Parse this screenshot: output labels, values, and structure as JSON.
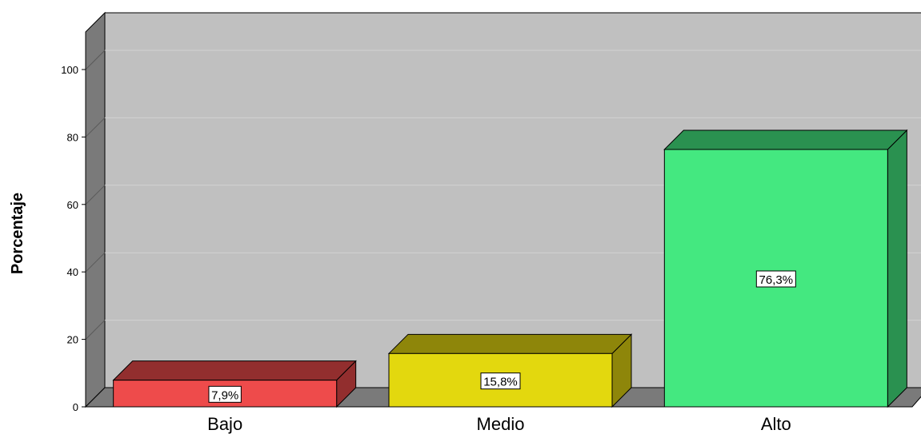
{
  "chart_data": {
    "type": "bar",
    "categories": [
      "Bajo",
      "Medio",
      "Alto"
    ],
    "values": [
      7.9,
      15.8,
      76.3
    ],
    "data_labels": [
      "7,9%",
      "15,8%",
      "76,3%"
    ],
    "ylabel": "Porcentaje",
    "ylim": [
      0,
      100
    ],
    "yticks": [
      0,
      20,
      40,
      60,
      80,
      100
    ],
    "grid": true,
    "style": "3d",
    "colors": {
      "bars": [
        "#ee4b4b",
        "#e3d80e",
        "#44e880"
      ],
      "bar_tops": [
        "#922e2e",
        "#8e860a",
        "#2a9150"
      ],
      "bar_sides": [
        "#922e2e",
        "#8e860a",
        "#2a9150"
      ],
      "back_wall": "#c0c0c0",
      "side_wall": "#7a7a7a",
      "floor": "#7a7a7a",
      "gridline": "#d2d2d2"
    }
  }
}
